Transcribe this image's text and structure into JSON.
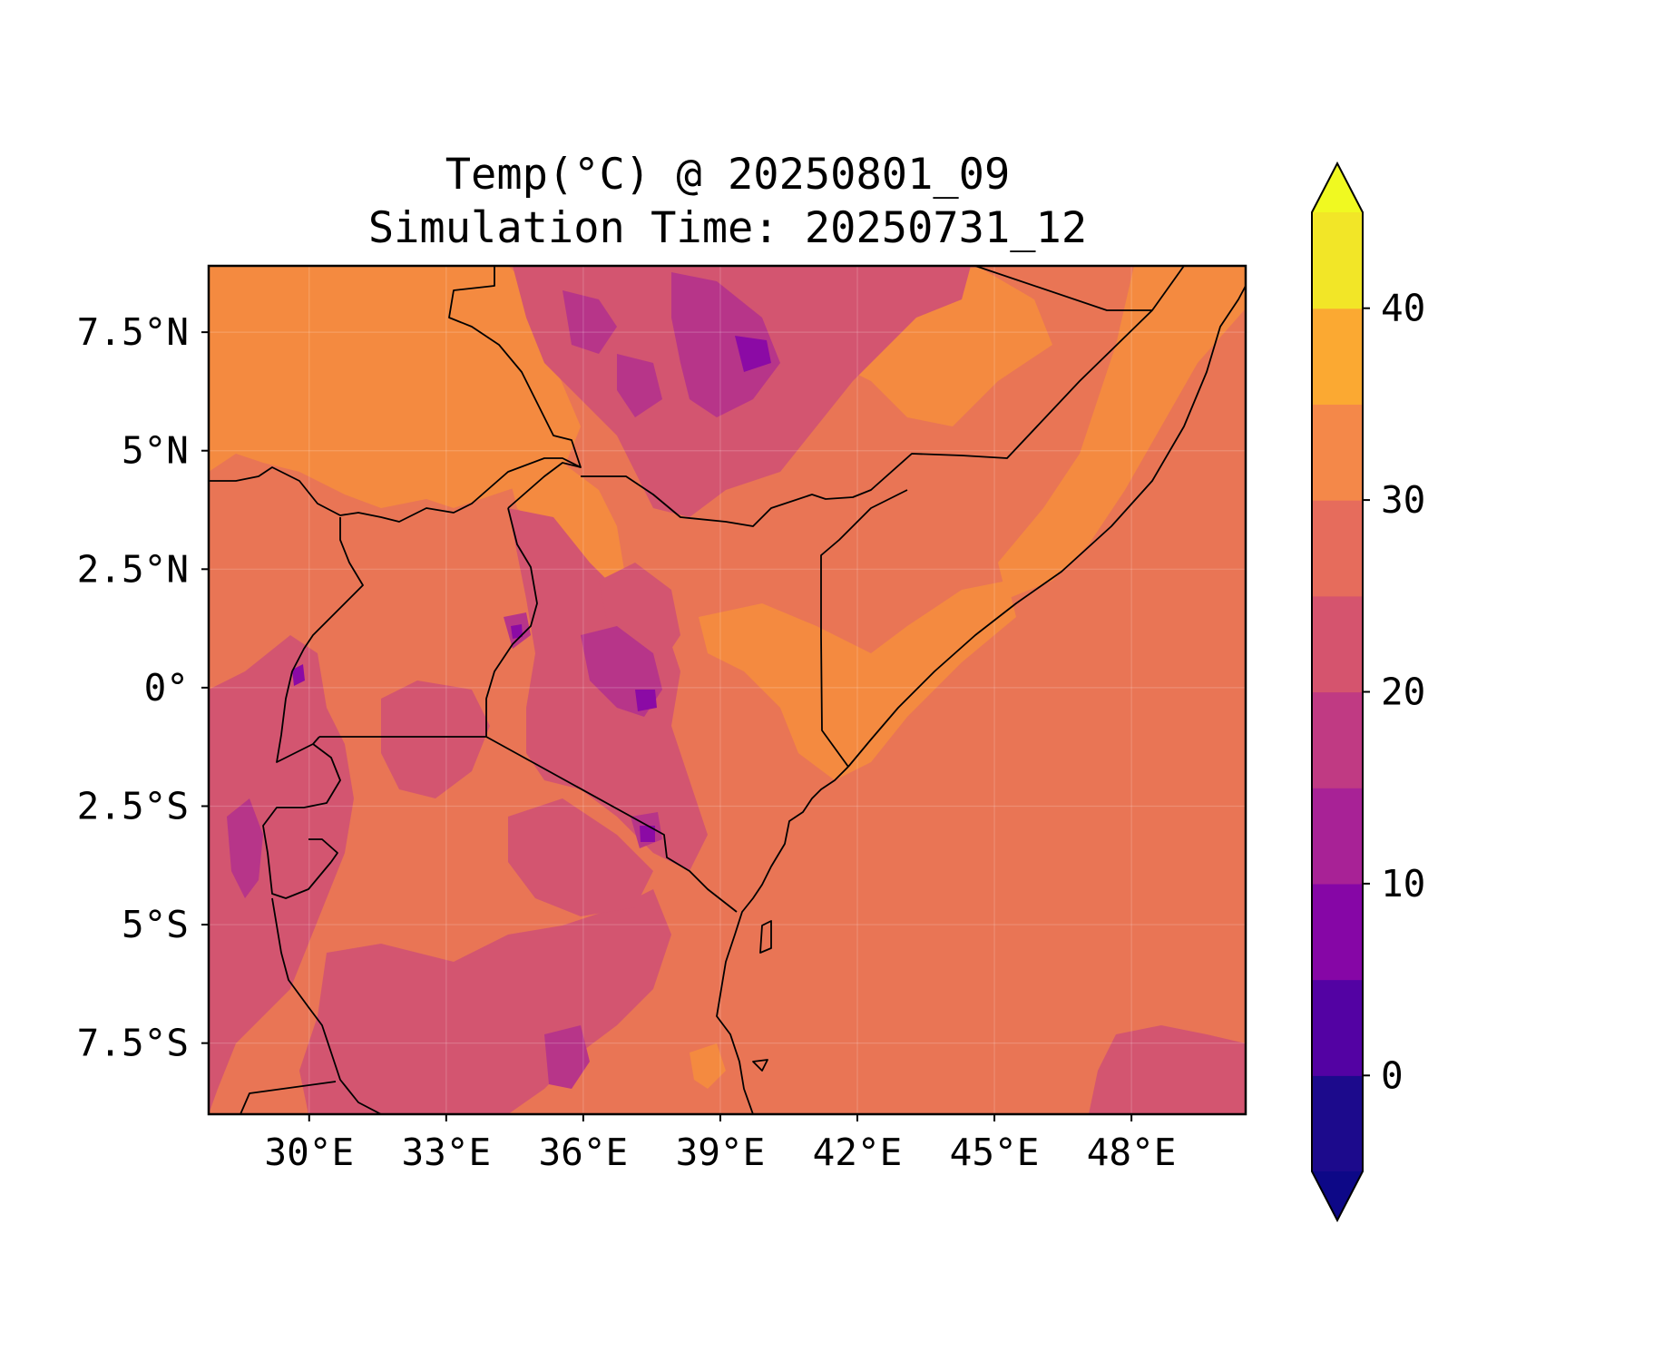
{
  "title": {
    "line1": "Temp(°C) @ 20250801_09",
    "line2": "Simulation Time: 20250731_12"
  },
  "chart_data": {
    "type": "heatmap",
    "subtype": "filled-contour-map",
    "variable": "Temp(°C)",
    "valid_time": "20250801_09",
    "simulation_time": "20250731_12",
    "lon_range": [
      27.8,
      50.5
    ],
    "lat_range": [
      -9.0,
      8.9
    ],
    "x_ticks": [
      30,
      33,
      36,
      39,
      42,
      45,
      48
    ],
    "x_tick_labels": [
      "30°E",
      "33°E",
      "36°E",
      "39°E",
      "42°E",
      "45°E",
      "48°E"
    ],
    "y_ticks": [
      7.5,
      5,
      2.5,
      0,
      -2.5,
      -5,
      -7.5
    ],
    "y_tick_labels": [
      "7.5°N",
      "5°N",
      "2.5°N",
      "0°",
      "2.5°S",
      "5°S",
      "7.5°S"
    ],
    "grid": true,
    "legend": "colorbar-right",
    "colorbar": {
      "levels": [
        -5,
        0,
        5,
        10,
        15,
        20,
        25,
        30,
        35,
        40,
        45
      ],
      "tick_values": [
        0,
        10,
        20,
        30,
        40
      ],
      "tick_labels": [
        "0",
        "10",
        "20",
        "30",
        "40"
      ],
      "extend": "both",
      "under_color": "#0d0887",
      "over_color": "#f0f921",
      "colors": [
        "#1c0a8c",
        "#5302a3",
        "#8606a6",
        "#a82296",
        "#c03a83",
        "#d5546e",
        "#e66c5c",
        "#f48849",
        "#fba932",
        "#f2e627"
      ]
    },
    "dominant_colors": {
      "ocean": "#e97555",
      "warm": "#f48a40",
      "cool": "#d35570",
      "cold": "#b73589",
      "coldest": "#8b0aa5"
    }
  }
}
